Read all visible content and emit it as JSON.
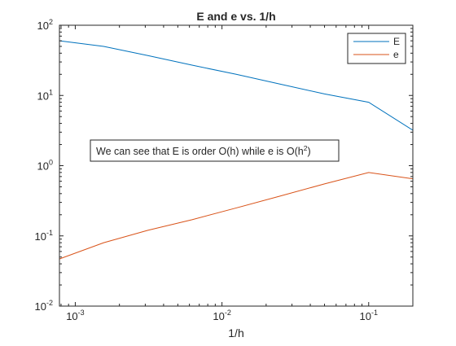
{
  "chart_data": {
    "type": "line",
    "title": "E and e vs. 1/h",
    "xlabel": "1/h",
    "ylabel": "",
    "xscale": "log",
    "yscale": "log",
    "xlim": [
      0.00078,
      0.2
    ],
    "ylim": [
      0.01,
      100
    ],
    "grid": false,
    "legend": "top-right",
    "x_ticks": [
      {
        "value": 0.001,
        "base": "10",
        "exp": "-3"
      },
      {
        "value": 0.01,
        "base": "10",
        "exp": "-2"
      },
      {
        "value": 0.1,
        "base": "10",
        "exp": "-1"
      }
    ],
    "y_ticks": [
      {
        "value": 0.01,
        "base": "10",
        "exp": "-2"
      },
      {
        "value": 0.1,
        "base": "10",
        "exp": "-1"
      },
      {
        "value": 1,
        "base": "10",
        "exp": "0"
      },
      {
        "value": 10,
        "base": "10",
        "exp": "1"
      },
      {
        "value": 100,
        "base": "10",
        "exp": "2"
      }
    ],
    "series": [
      {
        "name": "E",
        "color": "#0072BD",
        "x": [
          0.00078125,
          0.0015625,
          0.003125,
          0.00625,
          0.0125,
          0.025,
          0.05,
          0.1,
          0.2
        ],
        "y": [
          60,
          50,
          37,
          27,
          20,
          14.5,
          10.5,
          8,
          3.2
        ]
      },
      {
        "name": "e",
        "color": "#D95319",
        "x": [
          0.00078125,
          0.0015625,
          0.003125,
          0.00625,
          0.0125,
          0.025,
          0.05,
          0.1,
          0.2
        ],
        "y": [
          0.047,
          0.08,
          0.12,
          0.17,
          0.25,
          0.37,
          0.55,
          0.8,
          0.65
        ]
      }
    ],
    "annotation": {
      "pre": "We can see that E is order O(h) while e is O(h",
      "sup": "2",
      "post": ")"
    }
  }
}
